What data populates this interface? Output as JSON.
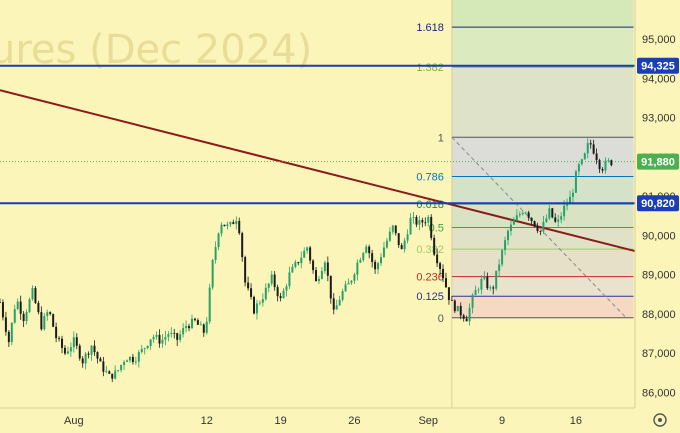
{
  "watermark": "ures (Dec 2024)",
  "chart_data": {
    "type": "candlestick",
    "title": "",
    "xlabel": "",
    "ylabel": "",
    "ylim": [
      85600,
      96000
    ],
    "y_ticks": [
      86000,
      87000,
      88000,
      89000,
      90000,
      91000,
      92000,
      93000,
      94000,
      95000
    ],
    "y_tick_labels": [
      "86,000",
      "87,000",
      "88,000",
      "89,000",
      "90,000",
      "91,000",
      "92,000",
      "93,000",
      "94,000",
      "95,000"
    ],
    "x_ticks": [
      {
        "label": "Aug",
        "day": 0
      },
      {
        "label": "12",
        "day": 9
      },
      {
        "label": "19",
        "day": 14
      },
      {
        "label": "26",
        "day": 19
      },
      {
        "label": "Sep",
        "day": 24
      },
      {
        "label": "9",
        "day": 29
      },
      {
        "label": "16",
        "day": 34
      }
    ],
    "x_range_days": [
      -5,
      38
    ],
    "price_path": [
      [
        -5.0,
        88300
      ],
      [
        -4.4,
        87300
      ],
      [
        -3.9,
        88400
      ],
      [
        -3.4,
        87900
      ],
      [
        -2.8,
        88550
      ],
      [
        -2.2,
        87700
      ],
      [
        -1.7,
        88100
      ],
      [
        -1.2,
        87400
      ],
      [
        -0.6,
        87000
      ],
      [
        0.0,
        87300
      ],
      [
        0.6,
        86800
      ],
      [
        1.2,
        87200
      ],
      [
        1.8,
        86700
      ],
      [
        2.4,
        86400
      ],
      [
        2.9,
        86500
      ],
      [
        3.5,
        86900
      ],
      [
        4.1,
        86850
      ],
      [
        4.7,
        87100
      ],
      [
        5.3,
        87450
      ],
      [
        5.9,
        87300
      ],
      [
        6.4,
        87500
      ],
      [
        7.0,
        87350
      ],
      [
        7.6,
        87700
      ],
      [
        8.2,
        87800
      ],
      [
        8.9,
        87500
      ],
      [
        9.4,
        89300
      ],
      [
        9.9,
        90350
      ],
      [
        10.5,
        90200
      ],
      [
        11.1,
        90500
      ],
      [
        11.6,
        88800
      ],
      [
        12.2,
        88100
      ],
      [
        12.8,
        88450
      ],
      [
        13.4,
        88900
      ],
      [
        14.0,
        88350
      ],
      [
        14.6,
        89000
      ],
      [
        15.2,
        89350
      ],
      [
        15.8,
        89700
      ],
      [
        16.4,
        88800
      ],
      [
        17.0,
        89400
      ],
      [
        17.6,
        88000
      ],
      [
        18.1,
        88500
      ],
      [
        18.7,
        88800
      ],
      [
        19.2,
        89300
      ],
      [
        19.8,
        89800
      ],
      [
        20.4,
        89100
      ],
      [
        21.0,
        89700
      ],
      [
        21.6,
        90200
      ],
      [
        22.2,
        89600
      ],
      [
        22.8,
        90400
      ],
      [
        23.4,
        90300
      ],
      [
        24.0,
        90450
      ],
      [
        24.4,
        89600
      ],
      [
        24.9,
        89100
      ],
      [
        25.5,
        88300
      ],
      [
        26.1,
        88050
      ],
      [
        26.6,
        87900
      ],
      [
        27.1,
        88500
      ],
      [
        27.7,
        88900
      ],
      [
        28.3,
        88550
      ],
      [
        28.8,
        89300
      ],
      [
        29.4,
        90100
      ],
      [
        29.9,
        90400
      ],
      [
        30.5,
        90700
      ],
      [
        31.0,
        90400
      ],
      [
        31.6,
        90100
      ],
      [
        32.2,
        90600
      ],
      [
        32.7,
        90250
      ],
      [
        33.2,
        90700
      ],
      [
        33.7,
        91000
      ],
      [
        34.1,
        91700
      ],
      [
        34.5,
        91900
      ],
      [
        34.9,
        92400
      ],
      [
        35.3,
        92100
      ],
      [
        35.7,
        91700
      ],
      [
        36.1,
        91850
      ],
      [
        36.5,
        91880
      ]
    ],
    "trendline": {
      "from": [
        -5,
        93700
      ],
      "to": [
        38,
        89600
      ],
      "color": "#8b1a1a"
    },
    "dashed_line": {
      "from": [
        25.6,
        92500
      ],
      "to": [
        37.4,
        87900
      ],
      "color": "#888888"
    },
    "fibonacci": {
      "levels": [
        {
          "label": "1.618",
          "price": 95310,
          "color": "#1a237e"
        },
        {
          "label": "1.382",
          "price": 94290,
          "color": "#7cb342"
        },
        {
          "label": "1",
          "price": 92500,
          "color": "#555555"
        },
        {
          "label": "0.786",
          "price": 91500,
          "color": "#0277bd"
        },
        {
          "label": "0.618",
          "price": 90800,
          "color": "#1e8e3e"
        },
        {
          "label": "0.5",
          "price": 90200,
          "color": "#43a047"
        },
        {
          "label": "0.382",
          "price": 89650,
          "color": "#9ccc65"
        },
        {
          "label": "0.236",
          "price": 88950,
          "color": "#c62828"
        },
        {
          "label": "0.125",
          "price": 88450,
          "color": "#283593"
        },
        {
          "label": "0",
          "price": 87900,
          "color": "#555555"
        }
      ],
      "range_days": [
        25.6,
        37.9
      ],
      "zones": [
        {
          "from": 87900,
          "to": 88450,
          "color": "#f6d9c2"
        },
        {
          "from": 88450,
          "to": 88950,
          "color": "#e9e2cc"
        },
        {
          "from": 88950,
          "to": 89650,
          "color": "#e6e0c8"
        },
        {
          "from": 89650,
          "to": 90200,
          "color": "#dfe2c6"
        },
        {
          "from": 90200,
          "to": 90800,
          "color": "#d9e3c4"
        },
        {
          "from": 90800,
          "to": 91500,
          "color": "#d4e2c9"
        },
        {
          "from": 91500,
          "to": 92500,
          "color": "#dcdcd8"
        },
        {
          "from": 92500,
          "to": 94290,
          "color": "#dde2c9"
        },
        {
          "from": 94290,
          "to": 95310,
          "color": "#dceac0"
        },
        {
          "from": 95310,
          "to": 96000,
          "color": "#d4e8b8"
        }
      ]
    },
    "horizontal_lines": [
      {
        "price": 94325,
        "label": "94,325",
        "color": "#1a3db8"
      },
      {
        "price": 90820,
        "label": "90,820",
        "color": "#1a3db8"
      }
    ],
    "current_price": {
      "price": 91880,
      "label": "91,880",
      "color": "#4caf50"
    }
  },
  "icons": {
    "settings": "gear-icon"
  }
}
